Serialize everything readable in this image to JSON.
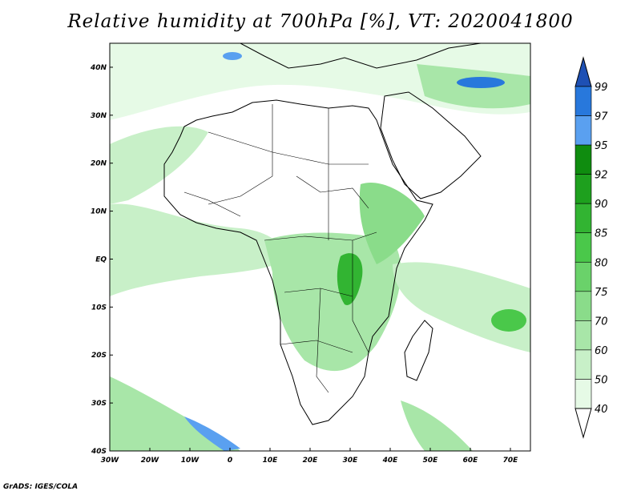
{
  "title": "Relative humidity at 700hPa [%], VT: 2020041800",
  "credit": "GrADS: IGES/COLA",
  "map": {
    "projection": "lat-lon",
    "lon_range": [
      -30,
      75
    ],
    "lat_range": [
      -40,
      45
    ],
    "lon_ticks": [
      "30W",
      "20W",
      "10W",
      "0",
      "10E",
      "20E",
      "30E",
      "40E",
      "50E",
      "60E",
      "70E"
    ],
    "lat_ticks": [
      "40N",
      "30N",
      "20N",
      "10N",
      "EQ",
      "10S",
      "20S",
      "30S",
      "40S"
    ],
    "field": "relative humidity",
    "level": "700hPa",
    "units": "%",
    "valid_time": "2020041800"
  },
  "colorbar": {
    "levels": [
      "40",
      "50",
      "60",
      "70",
      "75",
      "80",
      "85",
      "90",
      "92",
      "95",
      "97",
      "99"
    ],
    "colors": [
      "#ffffff",
      "#e6fae6",
      "#c8f0c8",
      "#a8e6a8",
      "#8adc8a",
      "#6ad26a",
      "#4ac84a",
      "#32b432",
      "#1ea01e",
      "#0f8c0f",
      "#5aa0f0",
      "#2878dc",
      "#1e50b4"
    ]
  }
}
